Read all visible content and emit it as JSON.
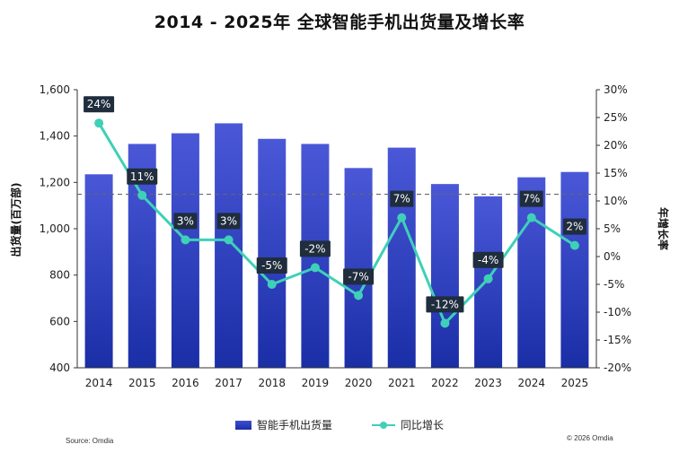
{
  "chart_data": {
    "type": "bar",
    "title": "2014 - 2025年 全球智能手机出货量及增长率",
    "categories": [
      "2014",
      "2015",
      "2016",
      "2017",
      "2018",
      "2019",
      "2020",
      "2021",
      "2022",
      "2023",
      "2024",
      "2025"
    ],
    "series": [
      {
        "name": "智能手机出货量",
        "type": "bar",
        "axis": "left",
        "values": [
          1235,
          1366,
          1412,
          1455,
          1388,
          1366,
          1262,
          1350,
          1193,
          1140,
          1222,
          1245
        ]
      },
      {
        "name": "同比增长",
        "type": "line",
        "axis": "right",
        "values": [
          24,
          11,
          3,
          3,
          -5,
          -2,
          -7,
          7,
          -12,
          -4,
          7,
          2
        ],
        "labels": [
          "24%",
          "11%",
          "3%",
          "3%",
          "-5%",
          "-2%",
          "-7%",
          "7%",
          "-12%",
          "-4%",
          "7%",
          "2%"
        ]
      }
    ],
    "ylabel": "出货量(百万部)",
    "ylim": [
      400,
      1600
    ],
    "yticks": [
      "400",
      "600",
      "800",
      "1,000",
      "1,200",
      "1,400",
      "1,600"
    ],
    "y2label": "年增长率",
    "y2lim": [
      -20,
      30
    ],
    "y2ticks": [
      "-20%",
      "-15%",
      "-10%",
      "-5%",
      "0%",
      "5%",
      "10%",
      "15%",
      "20%",
      "25%",
      "30%"
    ],
    "reference_line": {
      "axis": "right",
      "value": 11.2,
      "style": "dashed"
    },
    "grid": false,
    "legend_position": "bottom-center",
    "colors": {
      "bar_top": "#4a58d8",
      "bar_bottom": "#1a2ea6",
      "line": "#3fd0b8",
      "label_bg": "#1f2d3d",
      "label_text": "#ffffff"
    }
  },
  "footer": {
    "source": "Source: Omdia",
    "copyright": "© 2026 Omdia"
  }
}
